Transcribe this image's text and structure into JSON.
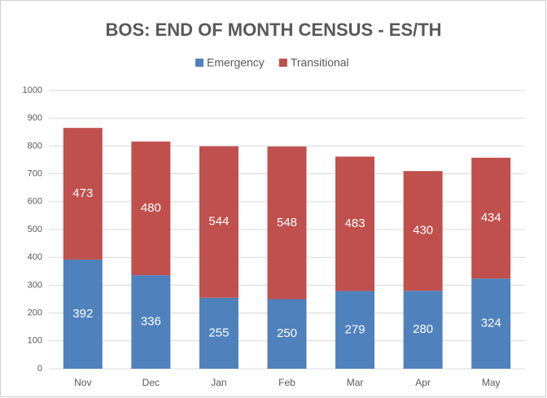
{
  "chart_data": {
    "type": "stacked_bar",
    "title": "BOS: END OF MONTH CENSUS - ES/TH",
    "categories": [
      "Nov",
      "Dec",
      "Jan",
      "Feb",
      "Mar",
      "Apr",
      "May"
    ],
    "series": [
      {
        "name": "Emergency",
        "color": "#4f81bd",
        "values": [
          392,
          336,
          255,
          250,
          279,
          280,
          324
        ]
      },
      {
        "name": "Transitional",
        "color": "#c0504d",
        "values": [
          473,
          480,
          544,
          548,
          483,
          430,
          434
        ]
      }
    ],
    "ylim": [
      0,
      1000
    ],
    "yticks": [
      0,
      100,
      200,
      300,
      400,
      500,
      600,
      700,
      800,
      900,
      1000
    ],
    "grid": true,
    "legend": "top"
  }
}
